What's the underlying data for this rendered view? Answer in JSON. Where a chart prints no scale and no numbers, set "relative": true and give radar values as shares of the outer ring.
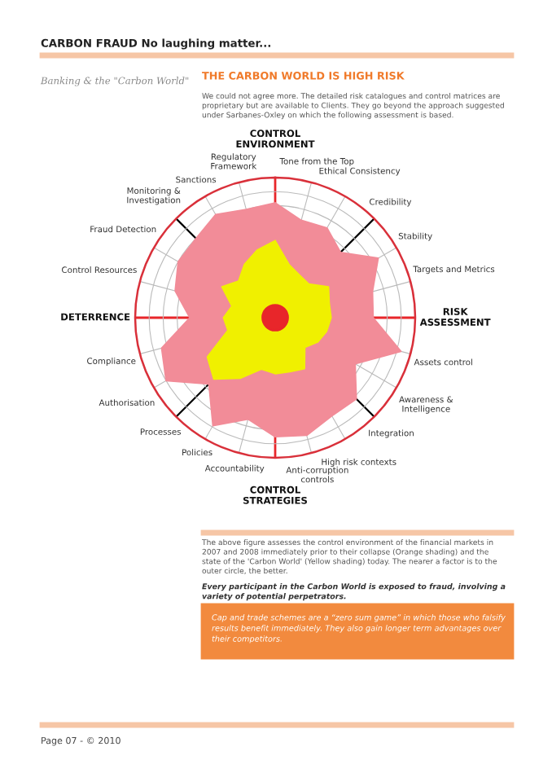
{
  "chart_data": {
    "type": "radar",
    "title": "THE CARBON WORLD IS HIGH RISK",
    "categories": [
      "CONTROL ENVIRONMENT",
      "Tone from the Top",
      "Ethical Consistency",
      "Credibility",
      "Stability",
      "Targets and Metrics",
      "RISK ASSESSMENT",
      "Assets control",
      "Awareness & Intelligence",
      "Integration",
      "High risk contexts",
      "Anti-corruption controls",
      "CONTROL STRATEGIES",
      "Accountability",
      "Policies",
      "Processes",
      "Authorisation",
      "Compliance",
      "DETERRENCE",
      "Control Resources",
      "Fraud Detection",
      "Monitoring & Investigation",
      "Sanctions",
      "Regulatory Framework"
    ],
    "series": [
      {
        "color": "#f28c98",
        "values": [
          0.82,
          0.72,
          0.74,
          0.66,
          0.85,
          0.72,
          0.7,
          0.93,
          0.66,
          0.82,
          0.81,
          0.87,
          0.85,
          0.75,
          0.89,
          0.67,
          0.9,
          0.84,
          0.61,
          0.74,
          0.8,
          0.8,
          0.85,
          0.8
        ]
      },
      {
        "color": "#f0f000",
        "values": [
          0.55,
          0.39,
          0.35,
          0.34,
          0.44,
          0.4,
          0.4,
          0.38,
          0.35,
          0.3,
          0.42,
          0.4,
          0.4,
          0.38,
          0.5,
          0.62,
          0.56,
          0.35,
          0.37,
          0.32,
          0.44,
          0.37,
          0.44,
          0.5
        ]
      }
    ],
    "relative": true,
    "grid": true,
    "annotations": [
      "CARBON FRAUD No laughing matter...",
      "Banking & the \"Carbon World\"",
      "We could not agree more. The detailed risk catalogues and control matrices are proprietary but are available to Clients. They go beyond the approach suggested under Sarbanes-Oxley on which the following assessment is based.",
      "The above figure assesses the control environment of the financial markets in 2007 and 2008 immediately prior to their collapse (Orange shading) and the state of the 'Carbon World' (Yellow shading) today. The nearer a factor is to the outer circle, the better.",
      "Every participant in the Carbon World is exposed to fraud, involving a variety of potential perpetrators.",
      "Cap and trade schemes are a “zero sum game” in which those who falsify results benefit immediately. They also gain longer term advantages over their competitors.",
      "Page 07 - © 2010"
    ]
  }
}
